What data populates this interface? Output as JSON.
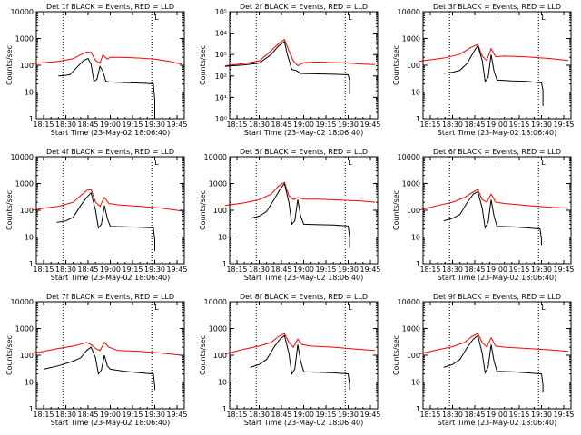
{
  "chart_data": [
    {
      "type": "line",
      "title": "Det 1f BLACK = Events, RED = LLD",
      "marker": "L",
      "xlabel": "Start Time (23-May-02 18:06:40)",
      "ylabel": "Counts/sec",
      "xtick_labels": [
        "18:15",
        "18:30",
        "18:45",
        "19:00",
        "19:15",
        "19:30",
        "19:45"
      ],
      "ytick_labels": [
        "1",
        "10",
        "100",
        "1000",
        "10000"
      ],
      "y_scale": "log",
      "ylim": [
        1,
        10000
      ],
      "dotted_lines_at": [
        "18:28",
        "19:28"
      ],
      "series": [
        {
          "name": "LLD",
          "color": "#ff0000",
          "x": [
            "18:07",
            "18:15",
            "18:25",
            "18:35",
            "18:40",
            "18:44",
            "18:47",
            "18:50",
            "18:53",
            "18:55",
            "18:58",
            "19:00",
            "19:10",
            "19:20",
            "19:30",
            "19:40",
            "19:48"
          ],
          "y": [
            115,
            125,
            140,
            175,
            250,
            310,
            300,
            150,
            120,
            240,
            170,
            200,
            195,
            185,
            170,
            140,
            110
          ]
        },
        {
          "name": "Events",
          "color": "#000000",
          "x": [
            "18:25",
            "18:30",
            "18:33",
            "18:38",
            "18:42",
            "18:45",
            "18:47",
            "18:49",
            "18:51",
            "18:53",
            "18:55",
            "18:57",
            "18:59",
            "19:05",
            "19:15",
            "19:25",
            "19:29",
            "19:30",
            "19:30"
          ],
          "y": [
            40,
            42,
            45,
            90,
            150,
            180,
            110,
            25,
            30,
            90,
            60,
            25,
            24,
            23,
            22,
            21,
            20,
            5,
            1.2
          ]
        }
      ]
    },
    {
      "type": "line",
      "title": "Det 2f BLACK = Events, RED = LLD",
      "marker": "L",
      "xlabel": "Start Time (23-May-02 18:06:40)",
      "ylabel": "Counts/sec",
      "xtick_labels": [
        "18:15",
        "18:30",
        "18:45",
        "19:00",
        "19:15",
        "19:30",
        "19:45"
      ],
      "ytick_labels": [
        "10⁰",
        "10¹",
        "10²",
        "10³",
        "10⁴",
        "10⁵"
      ],
      "y_scale": "log",
      "ylim": [
        1,
        100000
      ],
      "dotted_lines_at": [
        "18:28",
        "19:28"
      ],
      "series": [
        {
          "name": "LLD",
          "color": "#ff0000",
          "x": [
            "18:07",
            "18:20",
            "18:30",
            "18:38",
            "18:43",
            "18:47",
            "18:50",
            "18:53",
            "18:56",
            "19:00",
            "19:10",
            "19:20",
            "19:30",
            "19:40",
            "19:48"
          ],
          "y": [
            300,
            380,
            500,
            1500,
            3200,
            5000,
            1500,
            500,
            300,
            420,
            450,
            420,
            400,
            360,
            340
          ]
        },
        {
          "name": "Events",
          "color": "#000000",
          "x": [
            "18:07",
            "18:20",
            "18:30",
            "18:38",
            "18:43",
            "18:47",
            "18:49",
            "18:52",
            "18:55",
            "18:58",
            "19:00",
            "19:10",
            "19:20",
            "19:30",
            "19:31",
            "19:31"
          ],
          "y": [
            280,
            330,
            400,
            1000,
            2500,
            4000,
            1000,
            200,
            180,
            130,
            130,
            125,
            120,
            115,
            60,
            14
          ]
        }
      ]
    },
    {
      "type": "line",
      "title": "Det 3f BLACK = Events, RED = LLD",
      "marker": "L",
      "xlabel": "Start Time (23-May-02 18:06:40)",
      "ylabel": "Counts/sec",
      "xtick_labels": [
        "18:15",
        "18:30",
        "18:45",
        "19:00",
        "19:15",
        "19:30",
        "19:45"
      ],
      "ytick_labels": [
        "1",
        "10",
        "100",
        "1000",
        "10000"
      ],
      "y_scale": "log",
      "ylim": [
        1,
        10000
      ],
      "dotted_lines_at": [
        "18:28",
        "19:28"
      ],
      "series": [
        {
          "name": "LLD",
          "color": "#ff0000",
          "x": [
            "18:07",
            "18:15",
            "18:25",
            "18:35",
            "18:42",
            "18:47",
            "18:50",
            "18:53",
            "18:56",
            "18:59",
            "19:05",
            "19:20",
            "19:35",
            "19:48"
          ],
          "y": [
            140,
            160,
            190,
            260,
            450,
            600,
            220,
            150,
            420,
            210,
            220,
            205,
            180,
            150
          ]
        },
        {
          "name": "Events",
          "color": "#000000",
          "x": [
            "18:24",
            "18:30",
            "18:35",
            "18:40",
            "18:44",
            "18:47",
            "18:50",
            "18:52",
            "18:54",
            "18:56",
            "18:58",
            "19:00",
            "19:10",
            "19:20",
            "19:30",
            "19:31",
            "19:31"
          ],
          "y": [
            50,
            55,
            65,
            120,
            300,
            550,
            150,
            25,
            35,
            250,
            60,
            28,
            26,
            25,
            22,
            12,
            3
          ]
        }
      ]
    },
    {
      "type": "line",
      "title": "Det 4f BLACK = Events, RED = LLD",
      "marker": "L",
      "xlabel": "Start Time (23-May-02 18:06:40)",
      "ylabel": "Counts/sec",
      "xtick_labels": [
        "18:15",
        "18:30",
        "18:45",
        "19:00",
        "19:15",
        "19:30",
        "19:45"
      ],
      "ytick_labels": [
        "1",
        "10",
        "100",
        "1000",
        "10000"
      ],
      "y_scale": "log",
      "ylim": [
        1,
        10000
      ],
      "dotted_lines_at": [
        "18:28",
        "19:28"
      ],
      "series": [
        {
          "name": "LLD",
          "color": "#ff0000",
          "x": [
            "18:07",
            "18:15",
            "18:25",
            "18:35",
            "18:40",
            "18:44",
            "18:47",
            "18:50",
            "18:53",
            "18:56",
            "18:59",
            "19:05",
            "19:20",
            "19:35",
            "19:48"
          ],
          "y": [
            100,
            120,
            140,
            200,
            350,
            550,
            600,
            200,
            140,
            300,
            180,
            160,
            140,
            120,
            95
          ]
        },
        {
          "name": "Events",
          "color": "#000000",
          "x": [
            "18:24",
            "18:30",
            "18:35",
            "18:40",
            "18:44",
            "18:47",
            "18:50",
            "18:52",
            "18:54",
            "18:56",
            "18:58",
            "19:00",
            "19:10",
            "19:20",
            "19:29",
            "19:30",
            "19:30"
          ],
          "y": [
            35,
            40,
            55,
            150,
            300,
            450,
            100,
            22,
            30,
            150,
            50,
            25,
            24,
            23,
            22,
            8,
            3
          ]
        }
      ]
    },
    {
      "type": "line",
      "title": "Det 5f BLACK = Events, RED = LLD",
      "marker": "L",
      "xlabel": "Start Time (23-May-02 18:06:40)",
      "ylabel": "Counts/sec",
      "xtick_labels": [
        "18:15",
        "18:30",
        "18:45",
        "19:00",
        "19:15",
        "19:30",
        "19:45"
      ],
      "ytick_labels": [
        "1",
        "10",
        "100",
        "1000",
        "10000"
      ],
      "y_scale": "log",
      "ylim": [
        1,
        10000
      ],
      "dotted_lines_at": [
        "18:28",
        "19:28"
      ],
      "series": [
        {
          "name": "LLD",
          "color": "#ff0000",
          "x": [
            "18:07",
            "18:20",
            "18:30",
            "18:38",
            "18:43",
            "18:47",
            "18:50",
            "18:53",
            "18:56",
            "19:00",
            "19:10",
            "19:25",
            "19:40",
            "19:48"
          ],
          "y": [
            150,
            190,
            250,
            400,
            800,
            1100,
            350,
            250,
            300,
            260,
            260,
            240,
            220,
            200
          ]
        },
        {
          "name": "Events",
          "color": "#000000",
          "x": [
            "18:24",
            "18:30",
            "18:35",
            "18:40",
            "18:44",
            "18:47",
            "18:50",
            "18:52",
            "18:54",
            "18:56",
            "18:58",
            "19:00",
            "19:10",
            "19:20",
            "19:30",
            "19:31",
            "19:31"
          ],
          "y": [
            50,
            60,
            90,
            250,
            600,
            1000,
            200,
            30,
            40,
            250,
            60,
            30,
            29,
            28,
            26,
            10,
            4
          ]
        }
      ]
    },
    {
      "type": "line",
      "title": "Det 6f BLACK = Events, RED = LLD",
      "marker": "L",
      "xlabel": "Start Time (23-May-02 18:06:40)",
      "ylabel": "Counts/sec",
      "xtick_labels": [
        "18:15",
        "18:30",
        "18:45",
        "19:00",
        "19:15",
        "19:30",
        "19:45"
      ],
      "ytick_labels": [
        "1",
        "10",
        "100",
        "1000",
        "10000"
      ],
      "y_scale": "log",
      "ylim": [
        1,
        10000
      ],
      "dotted_lines_at": [
        "18:28",
        "19:28"
      ],
      "series": [
        {
          "name": "LLD",
          "color": "#ff0000",
          "x": [
            "18:07",
            "18:20",
            "18:30",
            "18:38",
            "18:43",
            "18:47",
            "18:50",
            "18:53",
            "18:56",
            "18:59",
            "19:05",
            "19:20",
            "19:35",
            "19:48"
          ],
          "y": [
            100,
            150,
            200,
            300,
            450,
            600,
            250,
            200,
            400,
            200,
            180,
            150,
            130,
            120
          ]
        },
        {
          "name": "Events",
          "color": "#000000",
          "x": [
            "18:24",
            "18:30",
            "18:35",
            "18:40",
            "18:44",
            "18:47",
            "18:50",
            "18:52",
            "18:54",
            "18:56",
            "18:58",
            "19:00",
            "19:10",
            "19:20",
            "19:29",
            "19:30",
            "19:30"
          ],
          "y": [
            40,
            50,
            70,
            200,
            400,
            500,
            120,
            22,
            35,
            250,
            60,
            25,
            24,
            22,
            20,
            8,
            5
          ]
        }
      ]
    },
    {
      "type": "line",
      "title": "Det 7f BLACK = Events, RED = LLD",
      "marker": "L",
      "xlabel": "Start Time (23-May-02 18:06:40)",
      "ylabel": "Counts/sec",
      "xtick_labels": [
        "18:15",
        "18:30",
        "18:45",
        "19:00",
        "19:15",
        "19:30",
        "19:45"
      ],
      "ytick_labels": [
        "1",
        "10",
        "100",
        "1000",
        "10000"
      ],
      "y_scale": "log",
      "ylim": [
        1,
        10000
      ],
      "dotted_lines_at": [
        "18:28",
        "19:28"
      ],
      "series": [
        {
          "name": "LLD",
          "color": "#ff0000",
          "x": [
            "18:07",
            "18:15",
            "18:25",
            "18:35",
            "18:40",
            "18:44",
            "18:47",
            "18:50",
            "18:53",
            "18:56",
            "18:59",
            "19:05",
            "19:20",
            "19:35",
            "19:48"
          ],
          "y": [
            120,
            140,
            180,
            220,
            260,
            300,
            250,
            180,
            150,
            300,
            200,
            150,
            140,
            120,
            100
          ]
        },
        {
          "name": "Events",
          "color": "#000000",
          "x": [
            "18:15",
            "18:25",
            "18:35",
            "18:40",
            "18:44",
            "18:47",
            "18:50",
            "18:52",
            "18:54",
            "18:56",
            "18:58",
            "19:00",
            "19:10",
            "19:20",
            "19:29",
            "19:30",
            "19:30"
          ],
          "y": [
            30,
            40,
            60,
            80,
            150,
            200,
            80,
            20,
            28,
            100,
            40,
            30,
            25,
            22,
            20,
            7,
            5
          ]
        }
      ]
    },
    {
      "type": "line",
      "title": "Det 8f BLACK = Events, RED = LLD",
      "marker": "L",
      "xlabel": "Start Time (23-May-02 18:06:40)",
      "ylabel": "Counts/sec",
      "xtick_labels": [
        "18:15",
        "18:30",
        "18:45",
        "19:00",
        "19:15",
        "19:30",
        "19:45"
      ],
      "ytick_labels": [
        "1",
        "10",
        "100",
        "1000",
        "10000"
      ],
      "y_scale": "log",
      "ylim": [
        1,
        10000
      ],
      "dotted_lines_at": [
        "18:28",
        "19:28"
      ],
      "series": [
        {
          "name": "LLD",
          "color": "#ff0000",
          "x": [
            "18:07",
            "18:20",
            "18:30",
            "18:38",
            "18:43",
            "18:47",
            "18:50",
            "18:53",
            "18:56",
            "18:59",
            "19:05",
            "19:20",
            "19:35",
            "19:48"
          ],
          "y": [
            110,
            170,
            220,
            300,
            500,
            650,
            300,
            200,
            400,
            250,
            220,
            200,
            170,
            150
          ]
        },
        {
          "name": "Events",
          "color": "#000000",
          "x": [
            "18:24",
            "18:30",
            "18:35",
            "18:40",
            "18:44",
            "18:47",
            "18:50",
            "18:52",
            "18:54",
            "18:56",
            "18:58",
            "19:00",
            "19:10",
            "19:20",
            "19:30",
            "19:31",
            "19:31"
          ],
          "y": [
            35,
            45,
            70,
            200,
            400,
            550,
            120,
            20,
            30,
            250,
            60,
            24,
            23,
            22,
            20,
            8,
            5
          ]
        }
      ]
    },
    {
      "type": "line",
      "title": "Det 9f BLACK = Events, RED = LLD",
      "marker": "L",
      "xlabel": "Start Time (23-May-02 18:06:40)",
      "ylabel": "Counts/sec",
      "xtick_labels": [
        "18:15",
        "18:30",
        "18:45",
        "19:00",
        "19:15",
        "19:30",
        "19:45"
      ],
      "ytick_labels": [
        "1",
        "10",
        "100",
        "1000",
        "10000"
      ],
      "y_scale": "log",
      "ylim": [
        1,
        10000
      ],
      "dotted_lines_at": [
        "18:28",
        "19:28"
      ],
      "series": [
        {
          "name": "LLD",
          "color": "#ff0000",
          "x": [
            "18:07",
            "18:20",
            "18:30",
            "18:38",
            "18:43",
            "18:47",
            "18:50",
            "18:53",
            "18:56",
            "18:59",
            "19:05",
            "19:20",
            "19:35",
            "19:48"
          ],
          "y": [
            110,
            160,
            210,
            300,
            500,
            650,
            300,
            200,
            450,
            220,
            200,
            180,
            160,
            140
          ]
        },
        {
          "name": "Events",
          "color": "#000000",
          "x": [
            "18:24",
            "18:30",
            "18:35",
            "18:40",
            "18:44",
            "18:47",
            "18:50",
            "18:52",
            "18:54",
            "18:56",
            "18:58",
            "19:00",
            "19:10",
            "19:20",
            "19:30",
            "19:31",
            "19:31"
          ],
          "y": [
            35,
            45,
            70,
            200,
            400,
            550,
            120,
            22,
            35,
            250,
            60,
            25,
            24,
            22,
            20,
            8,
            4
          ]
        }
      ]
    }
  ]
}
